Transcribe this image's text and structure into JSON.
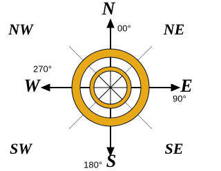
{
  "compass": {
    "corners": {
      "nw": "NW",
      "ne": "NE",
      "sw": "SW",
      "se": "SE"
    },
    "north": {
      "label": "N",
      "degrees": "00°"
    },
    "east": {
      "label": "E",
      "degrees": "90°"
    },
    "south": {
      "label": "S",
      "degrees": "180°"
    },
    "west": {
      "label": "W",
      "degrees": "270°"
    }
  }
}
